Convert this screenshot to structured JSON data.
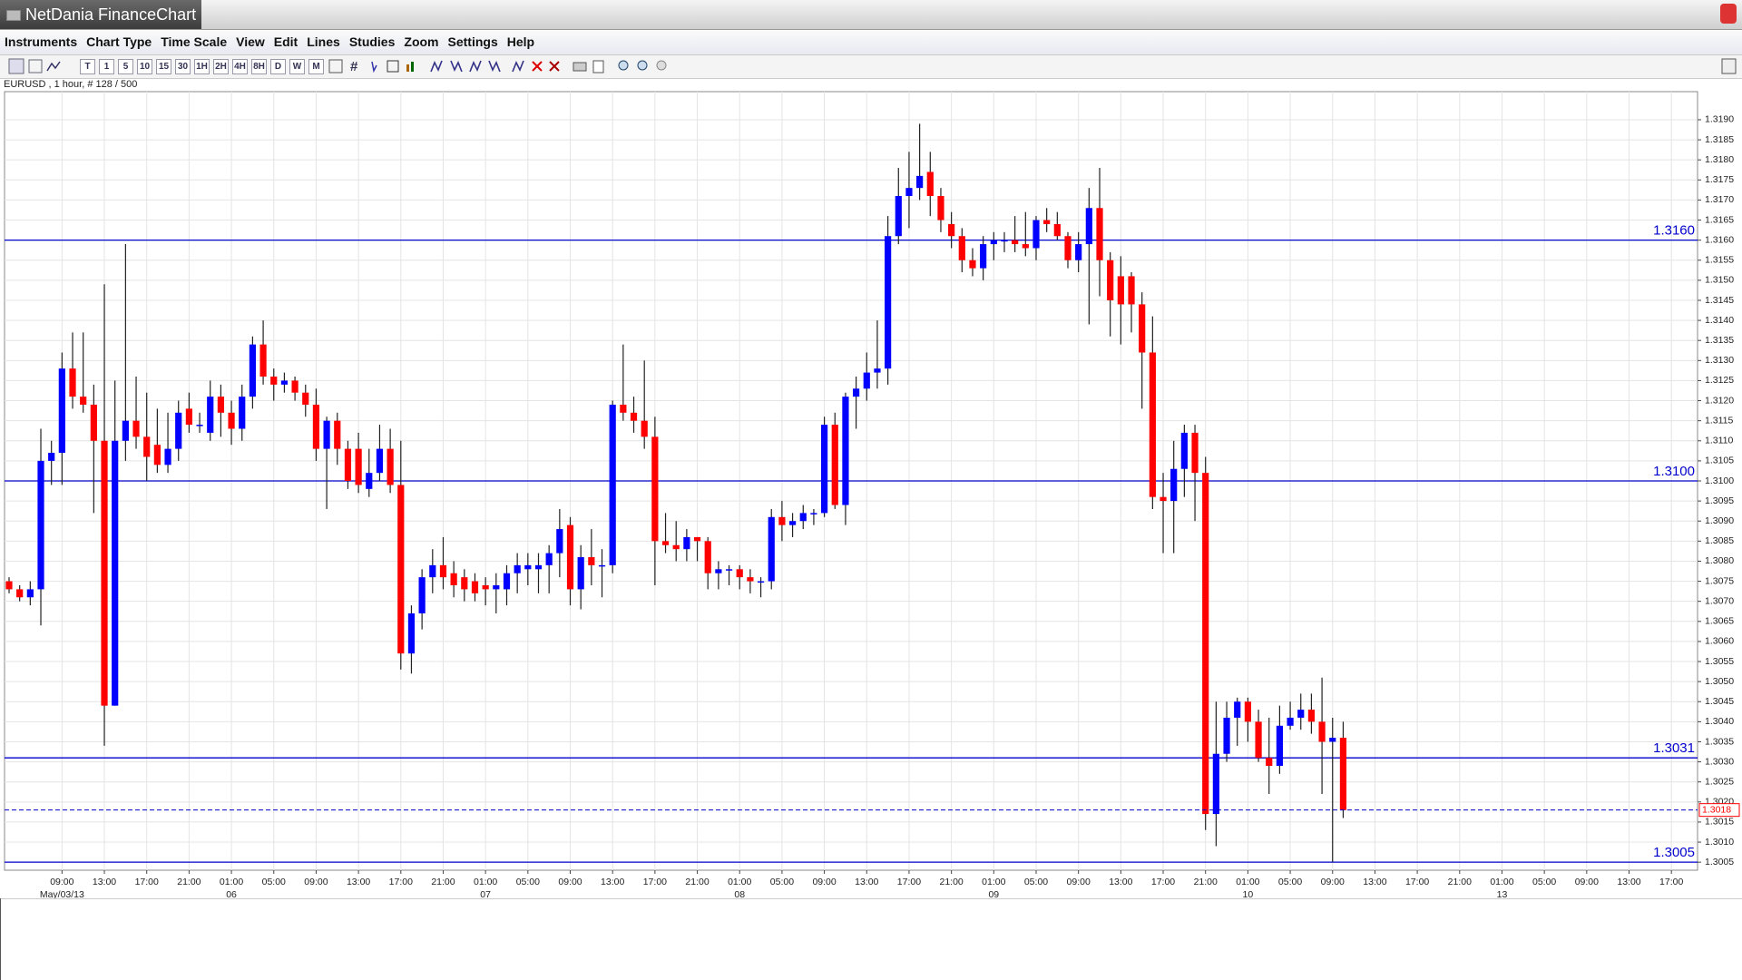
{
  "window": {
    "title": "NetDania FinanceChart"
  },
  "menu": [
    "Instruments",
    "Chart Type",
    "Time Scale",
    "View",
    "Edit",
    "Lines",
    "Studies",
    "Zoom",
    "Settings",
    "Help"
  ],
  "toolbar": {
    "timeframes": [
      "T",
      "1",
      "5",
      "10",
      "15",
      "30",
      "1H",
      "2H",
      "4H",
      "8H",
      "D",
      "W",
      "M"
    ]
  },
  "chart_data": {
    "type": "candlestick",
    "info": "EURUSD , 1 hour, # 128 / 500",
    "up_color": "#0000ff",
    "down_color": "#ff0000",
    "open": [
      1.3075,
      1.3073,
      1.3071,
      1.3073,
      1.3105,
      1.3107,
      1.3128,
      1.3121,
      1.3119,
      1.311,
      1.3044,
      1.311,
      1.3115,
      1.3111,
      1.3109,
      1.3104,
      1.3108,
      1.3118,
      1.3114,
      1.3112,
      1.3121,
      1.3117,
      1.3113,
      1.3121,
      1.3134,
      1.3126,
      1.3124,
      1.3125,
      1.3122,
      1.3119,
      1.3108,
      1.3115,
      1.3108,
      1.3108,
      1.3098,
      1.3102,
      1.3108,
      1.3099,
      1.3057,
      1.3067,
      1.3076,
      1.3079,
      1.3077,
      1.3076,
      1.3075,
      1.3074,
      1.3073,
      1.3073,
      1.3077,
      1.3078,
      1.3078,
      1.3079,
      1.3082,
      1.3089,
      1.3073,
      1.3081,
      1.3079,
      1.3079,
      1.3119,
      1.3117,
      1.3115,
      1.3111,
      1.3085,
      1.3084,
      1.3083,
      1.3086,
      1.3085,
      1.3077,
      1.3078,
      1.3078,
      1.3076,
      1.3075,
      1.3075,
      1.3091,
      1.3089,
      1.309,
      1.3092,
      1.3092,
      1.3114,
      1.3094,
      1.3121,
      1.3123,
      1.3127,
      1.3128,
      1.3161,
      1.3171,
      1.3173,
      1.3177,
      1.3171,
      1.3164,
      1.3161,
      1.3155,
      1.3153,
      1.3159,
      1.316,
      1.316,
      1.3159,
      1.3158,
      1.3165,
      1.3164,
      1.3161,
      1.3155,
      1.3159,
      1.3168,
      1.3155,
      1.3151,
      1.3151,
      1.3144,
      1.3132,
      1.3096,
      1.3095,
      1.3103,
      1.3112,
      1.3102,
      1.3017,
      1.3032,
      1.3041,
      1.3045,
      1.304,
      1.3031,
      1.3029,
      1.3039,
      1.3041,
      1.3043,
      1.304,
      1.3035,
      1.3036
    ],
    "high": [
      1.3076,
      1.3074,
      1.3075,
      1.3113,
      1.311,
      1.3132,
      1.3137,
      1.3137,
      1.3124,
      1.3149,
      1.3125,
      1.3159,
      1.3126,
      1.3122,
      1.3118,
      1.3117,
      1.312,
      1.3122,
      1.3117,
      1.3125,
      1.3124,
      1.312,
      1.3124,
      1.3136,
      1.314,
      1.3128,
      1.3127,
      1.3126,
      1.3124,
      1.3123,
      1.3116,
      1.3117,
      1.311,
      1.3112,
      1.3108,
      1.3114,
      1.3113,
      1.311,
      1.3069,
      1.3078,
      1.3083,
      1.3086,
      1.308,
      1.3078,
      1.3077,
      1.3076,
      1.3077,
      1.3079,
      1.3082,
      1.3082,
      1.3082,
      1.3084,
      1.3093,
      1.3091,
      1.3084,
      1.3088,
      1.3083,
      1.312,
      1.3134,
      1.3121,
      1.313,
      1.3116,
      1.3092,
      1.309,
      1.3088,
      1.3086,
      1.3086,
      1.308,
      1.3079,
      1.3079,
      1.3078,
      1.3076,
      1.3093,
      1.3095,
      1.3092,
      1.3094,
      1.3093,
      1.3116,
      1.3117,
      1.3122,
      1.3126,
      1.3132,
      1.314,
      1.3166,
      1.3178,
      1.3182,
      1.3189,
      1.3182,
      1.3173,
      1.3167,
      1.3163,
      1.3158,
      1.3161,
      1.3162,
      1.3162,
      1.3166,
      1.3167,
      1.3166,
      1.3168,
      1.3167,
      1.3162,
      1.3162,
      1.3173,
      1.3178,
      1.3157,
      1.3156,
      1.3152,
      1.3147,
      1.3141,
      1.3102,
      1.311,
      1.3114,
      1.3114,
      1.3106,
      1.3045,
      1.3045,
      1.3046,
      1.3046,
      1.3043,
      1.3041,
      1.3044,
      1.3045,
      1.3047,
      1.3047,
      1.3051,
      1.3041,
      1.304
    ],
    "low": [
      1.3072,
      1.307,
      1.3069,
      1.3064,
      1.3099,
      1.3099,
      1.3118,
      1.3117,
      1.3092,
      1.3034,
      1.3044,
      1.3105,
      1.3108,
      1.31,
      1.3102,
      1.3102,
      1.3105,
      1.3112,
      1.3112,
      1.311,
      1.3111,
      1.3109,
      1.311,
      1.3118,
      1.3124,
      1.312,
      1.3122,
      1.312,
      1.3116,
      1.3105,
      1.3093,
      1.3104,
      1.3098,
      1.3097,
      1.3096,
      1.31,
      1.3097,
      1.3053,
      1.3052,
      1.3063,
      1.3072,
      1.3073,
      1.3071,
      1.307,
      1.307,
      1.3069,
      1.3067,
      1.3069,
      1.3072,
      1.3074,
      1.3072,
      1.3072,
      1.3076,
      1.3069,
      1.3068,
      1.3074,
      1.3071,
      1.3077,
      1.3115,
      1.3112,
      1.3108,
      1.3074,
      1.3082,
      1.308,
      1.308,
      1.308,
      1.3073,
      1.3073,
      1.3074,
      1.3073,
      1.3072,
      1.3071,
      1.3073,
      1.3085,
      1.3086,
      1.3088,
      1.3089,
      1.3091,
      1.3093,
      1.3089,
      1.3113,
      1.312,
      1.3123,
      1.3124,
      1.3159,
      1.3163,
      1.317,
      1.3166,
      1.3162,
      1.3158,
      1.3152,
      1.3151,
      1.315,
      1.3155,
      1.3157,
      1.3157,
      1.3156,
      1.3155,
      1.3162,
      1.316,
      1.3153,
      1.3152,
      1.3139,
      1.3146,
      1.3136,
      1.3134,
      1.3137,
      1.3118,
      1.3093,
      1.3082,
      1.3082,
      1.3096,
      1.309,
      1.3013,
      1.3009,
      1.303,
      1.3034,
      1.3035,
      1.303,
      1.3022,
      1.3027,
      1.3038,
      1.3038,
      1.3037,
      1.3022,
      1.3005,
      1.3016
    ],
    "close": [
      1.3073,
      1.3071,
      1.3073,
      1.3105,
      1.3107,
      1.3128,
      1.3121,
      1.3119,
      1.311,
      1.3044,
      1.311,
      1.3115,
      1.3111,
      1.3106,
      1.3104,
      1.3108,
      1.3117,
      1.3114,
      1.3114,
      1.3121,
      1.3117,
      1.3113,
      1.3121,
      1.3134,
      1.3126,
      1.3124,
      1.3125,
      1.3122,
      1.3119,
      1.3108,
      1.3115,
      1.3108,
      1.31,
      1.3099,
      1.3102,
      1.3108,
      1.3099,
      1.3057,
      1.3067,
      1.3076,
      1.3079,
      1.3076,
      1.3074,
      1.3073,
      1.3072,
      1.3073,
      1.3074,
      1.3077,
      1.3079,
      1.3079,
      1.3079,
      1.3082,
      1.3088,
      1.3073,
      1.3081,
      1.3079,
      1.3079,
      1.3119,
      1.3117,
      1.3115,
      1.3111,
      1.3085,
      1.3084,
      1.3083,
      1.3086,
      1.3085,
      1.3077,
      1.3078,
      1.3078,
      1.3076,
      1.3075,
      1.3075,
      1.3091,
      1.3089,
      1.309,
      1.3092,
      1.3092,
      1.3114,
      1.3094,
      1.3121,
      1.3123,
      1.3127,
      1.3128,
      1.3161,
      1.3171,
      1.3173,
      1.3176,
      1.3171,
      1.3165,
      1.3161,
      1.3155,
      1.3153,
      1.3159,
      1.316,
      1.316,
      1.3159,
      1.3158,
      1.3165,
      1.3164,
      1.3161,
      1.3155,
      1.3159,
      1.3168,
      1.3155,
      1.3145,
      1.3144,
      1.3144,
      1.3132,
      1.3096,
      1.3095,
      1.3103,
      1.3112,
      1.3102,
      1.3017,
      1.3032,
      1.3041,
      1.3045,
      1.304,
      1.3031,
      1.3029,
      1.3039,
      1.3041,
      1.3043,
      1.304,
      1.3035,
      1.3036,
      1.3018
    ],
    "ylim": [
      1.3003,
      1.3197
    ],
    "yticks": [
      1.3005,
      {
        "value": 1.301,
        "label": "1.3010"
      },
      1.3015,
      {
        "value": 1.302,
        "label": "1.3020"
      },
      1.3025,
      {
        "value": 1.303,
        "label": "1.3030"
      },
      1.3035,
      {
        "value": 1.304,
        "label": "1.3040"
      },
      1.3045,
      {
        "value": 1.305,
        "label": "1.3050"
      },
      1.3055,
      {
        "value": 1.306,
        "label": "1.3060"
      },
      1.3065,
      {
        "value": 1.307,
        "label": "1.3070"
      },
      1.3075,
      {
        "value": 1.308,
        "label": "1.3080"
      },
      1.3085,
      {
        "value": 1.309,
        "label": "1.3090"
      },
      1.3095,
      {
        "value": 1.31,
        "label": "1.3100"
      },
      1.3105,
      {
        "value": 1.311,
        "label": "1.3110"
      },
      1.3115,
      {
        "value": 1.312,
        "label": "1.3120"
      },
      1.3125,
      {
        "value": 1.313,
        "label": "1.3130"
      },
      1.3135,
      {
        "value": 1.314,
        "label": "1.3140"
      },
      1.3145,
      {
        "value": 1.315,
        "label": "1.3150"
      },
      1.3155,
      {
        "value": 1.316,
        "label": "1.3160"
      },
      1.3165,
      {
        "value": 1.317,
        "label": "1.3170"
      },
      1.3175,
      {
        "value": 1.318,
        "label": "1.3180"
      },
      1.3185,
      {
        "value": 1.319,
        "label": "1.3190"
      }
    ],
    "x_time_labels": [
      "09:00",
      "13:00",
      "17:00",
      "21:00",
      "01:00",
      "05:00",
      "09:00",
      "13:00",
      "17:00",
      "21:00",
      "01:00",
      "05:00",
      "09:00",
      "13:00",
      "17:00",
      "21:00",
      "01:00",
      "05:00",
      "09:00",
      "13:00",
      "17:00",
      "21:00",
      "01:00",
      "05:00",
      "09:00",
      "13:00",
      "17:00",
      "21:00",
      "01:00",
      "05:00",
      "09:00",
      "13:00",
      "17:00",
      "21:00",
      "01:00",
      "05:00",
      "09:00",
      "13:00",
      "17:00"
    ],
    "x_date_labels": [
      "May/03/13",
      null,
      null,
      null,
      "06",
      null,
      null,
      null,
      null,
      null,
      "07",
      null,
      null,
      null,
      null,
      null,
      "08",
      null,
      null,
      null,
      null,
      null,
      "09",
      null,
      null,
      null,
      null,
      null,
      "10",
      null,
      null,
      null,
      null,
      null,
      "13",
      null,
      null,
      null,
      null
    ],
    "hlines": [
      {
        "value": 1.316,
        "label": "1.3160"
      },
      {
        "value": 1.31,
        "label": "1.3100"
      },
      1.3031,
      1.3005
    ],
    "hline_color": "#0000cc",
    "last_price": 1.3018,
    "grid": true
  }
}
